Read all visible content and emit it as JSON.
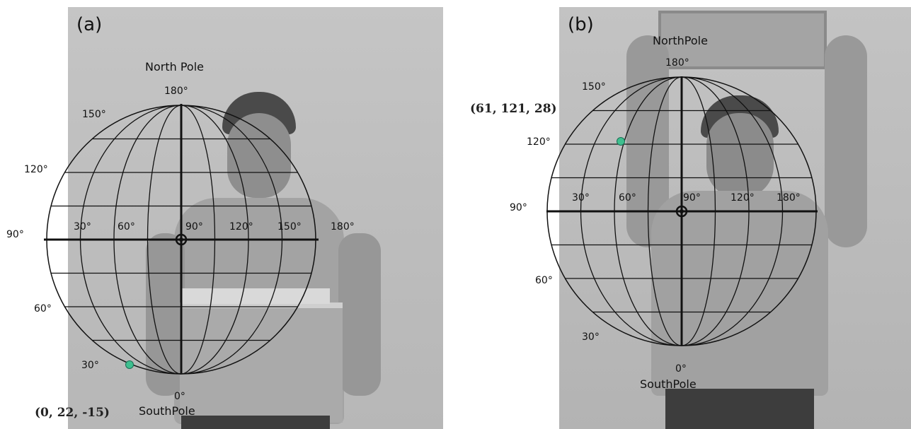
{
  "panels": [
    {
      "label": "(a)",
      "north_label": "North Pole",
      "south_label": "SouthPole",
      "coordinate": "(0, 22, -15)",
      "equator_ticks": [
        "30°",
        "60°",
        "90°",
        "120°",
        "150°",
        "180°"
      ],
      "left_degree_labels": [
        "180°",
        "150°",
        "120°",
        "90°",
        "60°",
        "30°",
        "0°"
      ]
    },
    {
      "label": "(b)",
      "north_label": "NorthPole",
      "south_label": "SouthPole",
      "coordinate": "(61, 121, 28)",
      "equator_ticks": [
        "30°",
        "60°",
        "90°",
        "120°",
        "180°"
      ],
      "left_degree_labels": [
        "180°",
        "150°",
        "120°",
        "90°",
        "60°",
        "30°",
        "0°"
      ]
    }
  ],
  "colors": {
    "grid": "#111111",
    "marker": "#3fbf8f",
    "background": "#bdbdbd"
  }
}
